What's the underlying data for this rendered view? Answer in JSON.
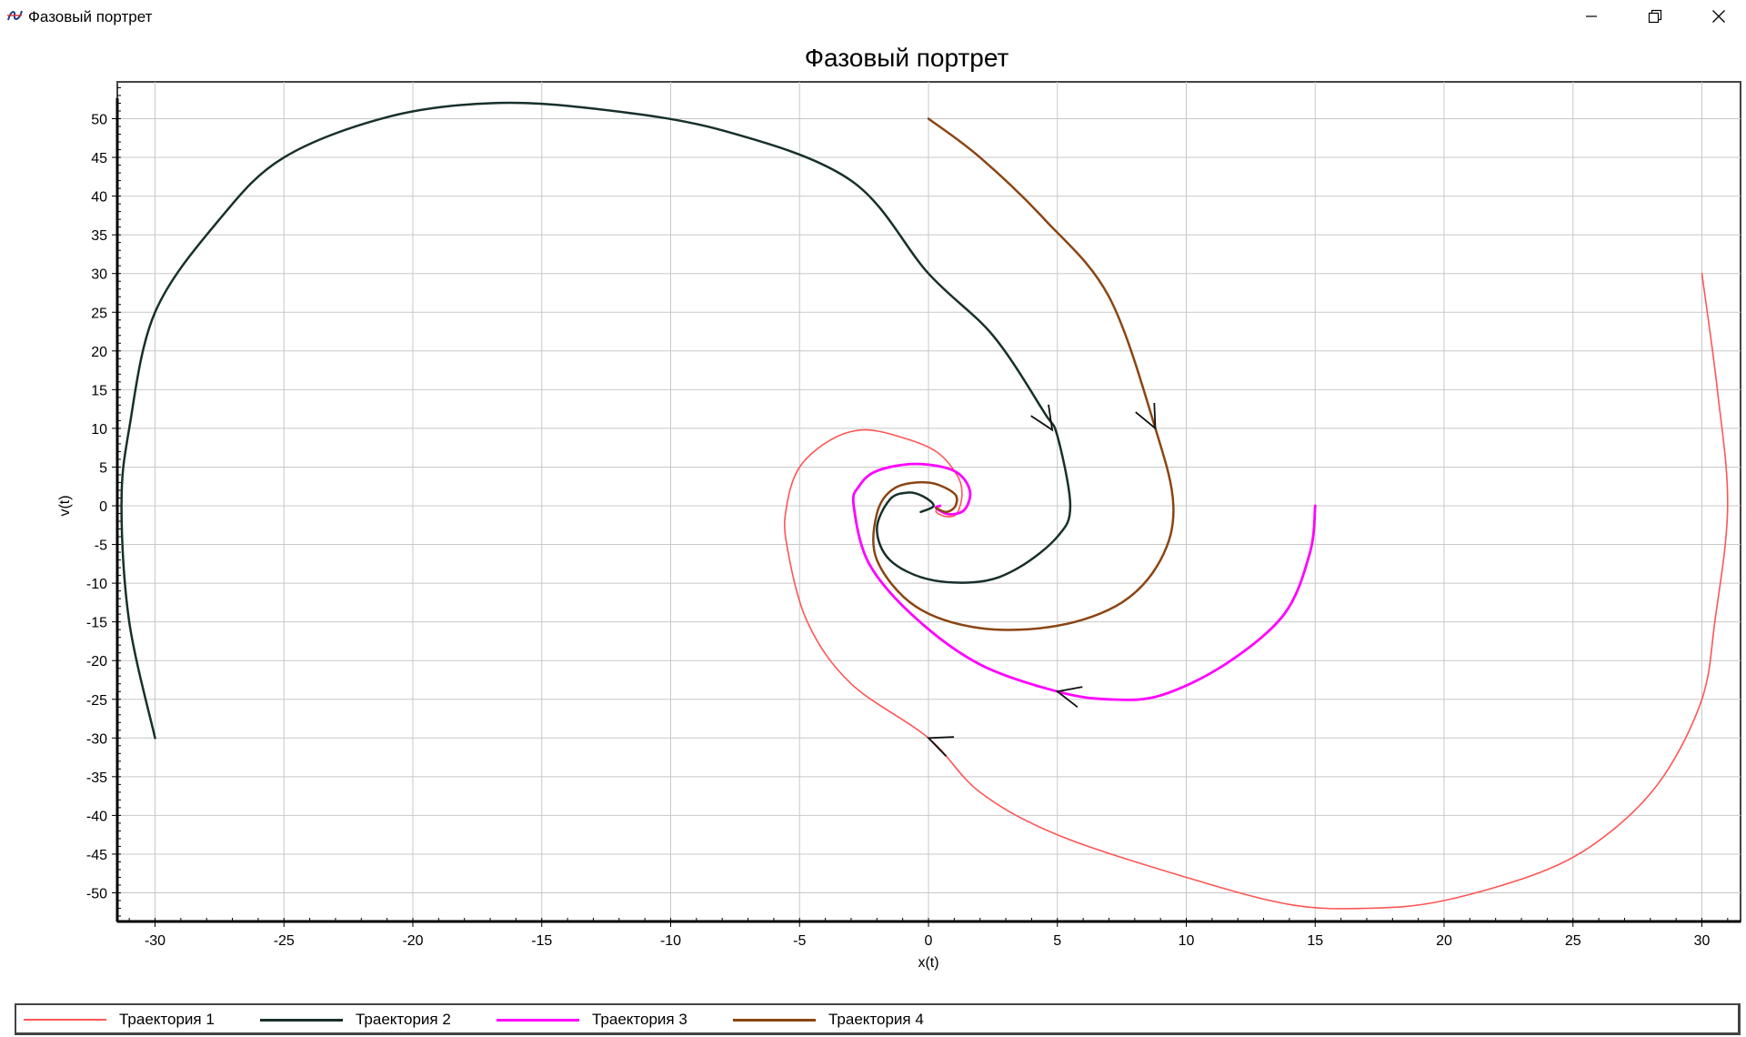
{
  "window": {
    "title": "Фазовый портрет",
    "icon": "phase-portrait-app-icon",
    "controls": [
      "minimize-icon",
      "restore-icon",
      "close-icon"
    ]
  },
  "chart_data": {
    "type": "line",
    "title": "Фазовый портрет",
    "xlabel": "x(t)",
    "ylabel": "v(t)",
    "xlim": [
      -31.5,
      31.5
    ],
    "ylim": [
      -54,
      55
    ],
    "xticks": [
      -30,
      -25,
      -20,
      -15,
      -10,
      -5,
      0,
      5,
      10,
      15,
      20,
      25,
      30
    ],
    "yticks": [
      50,
      45,
      40,
      35,
      30,
      25,
      20,
      15,
      10,
      5,
      0,
      -5,
      -10,
      -15,
      -20,
      -25,
      -30,
      -35,
      -40,
      -45,
      -50
    ],
    "grid": true,
    "legend": "bottom",
    "series": [
      {
        "name": "Траектория 1",
        "color": "#ff5555",
        "width": 1.6,
        "points": [
          [
            30,
            30
          ],
          [
            30.6,
            15
          ],
          [
            31,
            0
          ],
          [
            30.5,
            -15
          ],
          [
            30,
            -25
          ],
          [
            28.5,
            -35
          ],
          [
            26.5,
            -42
          ],
          [
            24,
            -47
          ],
          [
            20,
            -51
          ],
          [
            17,
            -52
          ],
          [
            14,
            -51.5
          ],
          [
            10,
            -48
          ],
          [
            5,
            -42.5
          ],
          [
            2,
            -37
          ],
          [
            0,
            -30
          ],
          [
            -3,
            -23
          ],
          [
            -4.7,
            -15
          ],
          [
            -5.5,
            -5
          ],
          [
            -5.5,
            0
          ],
          [
            -5,
            5
          ],
          [
            -3.8,
            8.5
          ],
          [
            -2.5,
            9.8
          ],
          [
            -1,
            8.8
          ],
          [
            0.3,
            7
          ],
          [
            1.1,
            4
          ],
          [
            1.3,
            1.5
          ],
          [
            1.1,
            -1
          ],
          [
            0.7,
            -1.4
          ],
          [
            0.3,
            -0.8
          ],
          [
            0.4,
            0
          ]
        ],
        "arrows": [
          {
            "x": 0,
            "y": -30,
            "from": [
              1.5,
              -32
            ]
          }
        ]
      },
      {
        "name": "Траектория 2",
        "color": "#17302c",
        "width": 2.5,
        "points": [
          [
            -30,
            -30
          ],
          [
            -31,
            -15
          ],
          [
            -31.3,
            0
          ],
          [
            -31,
            10
          ],
          [
            -30,
            25
          ],
          [
            -27.5,
            37
          ],
          [
            -25,
            45
          ],
          [
            -21,
            50.2
          ],
          [
            -17,
            52
          ],
          [
            -13,
            51.3
          ],
          [
            -8,
            48.5
          ],
          [
            -3,
            42
          ],
          [
            0,
            30
          ],
          [
            2.5,
            22
          ],
          [
            4.5,
            12
          ],
          [
            5,
            9
          ],
          [
            5.5,
            0
          ],
          [
            5,
            -4
          ],
          [
            3.5,
            -8
          ],
          [
            2,
            -9.8
          ],
          [
            0,
            -9.5
          ],
          [
            -1.5,
            -7
          ],
          [
            -2,
            -3
          ],
          [
            -1.5,
            0.8
          ],
          [
            -0.8,
            1.7
          ],
          [
            -0.2,
            1.2
          ],
          [
            0.2,
            0
          ],
          [
            -0.3,
            -0.8
          ]
        ],
        "arrows": [
          {
            "x": 4.8,
            "y": 9.8,
            "from": [
              4,
              14
            ]
          }
        ]
      },
      {
        "name": "Траектория 3",
        "color": "#ff00ff",
        "width": 2.8,
        "points": [
          [
            15,
            0
          ],
          [
            14.8,
            -6
          ],
          [
            13.8,
            -14
          ],
          [
            11.5,
            -20.5
          ],
          [
            9,
            -24.5
          ],
          [
            7,
            -25
          ],
          [
            5,
            -24
          ],
          [
            2,
            -20.5
          ],
          [
            -0.5,
            -14.5
          ],
          [
            -2.3,
            -7.5
          ],
          [
            -2.9,
            0
          ],
          [
            -2.7,
            2.5
          ],
          [
            -2,
            4.5
          ],
          [
            -0.5,
            5.4
          ],
          [
            1,
            4.5
          ],
          [
            1.6,
            2
          ],
          [
            1.4,
            -0.5
          ],
          [
            0.8,
            -1.1
          ],
          [
            0.3,
            -0.3
          ],
          [
            0.45,
            0
          ]
        ],
        "arrows": [
          {
            "x": 5,
            "y": -24,
            "from": [
              7,
              -25.6
            ]
          }
        ]
      },
      {
        "name": "Траектория 4",
        "color": "#8b4513",
        "width": 2.5,
        "points": [
          [
            0,
            50
          ],
          [
            2,
            45
          ],
          [
            4.5,
            37
          ],
          [
            7,
            27
          ],
          [
            8.8,
            10
          ],
          [
            9.5,
            0
          ],
          [
            9,
            -7
          ],
          [
            7.5,
            -12.5
          ],
          [
            5,
            -15.5
          ],
          [
            2,
            -15.8
          ],
          [
            -0.5,
            -13
          ],
          [
            -2,
            -7
          ],
          [
            -2,
            -1
          ],
          [
            -1.3,
            2.3
          ],
          [
            0,
            3
          ],
          [
            1,
            1.6
          ],
          [
            1.05,
            0
          ],
          [
            0.7,
            -0.8
          ],
          [
            0.3,
            -0.3
          ]
        ],
        "arrows": [
          {
            "x": 8.8,
            "y": 10,
            "from": [
              8.2,
              14
            ]
          }
        ]
      }
    ]
  }
}
